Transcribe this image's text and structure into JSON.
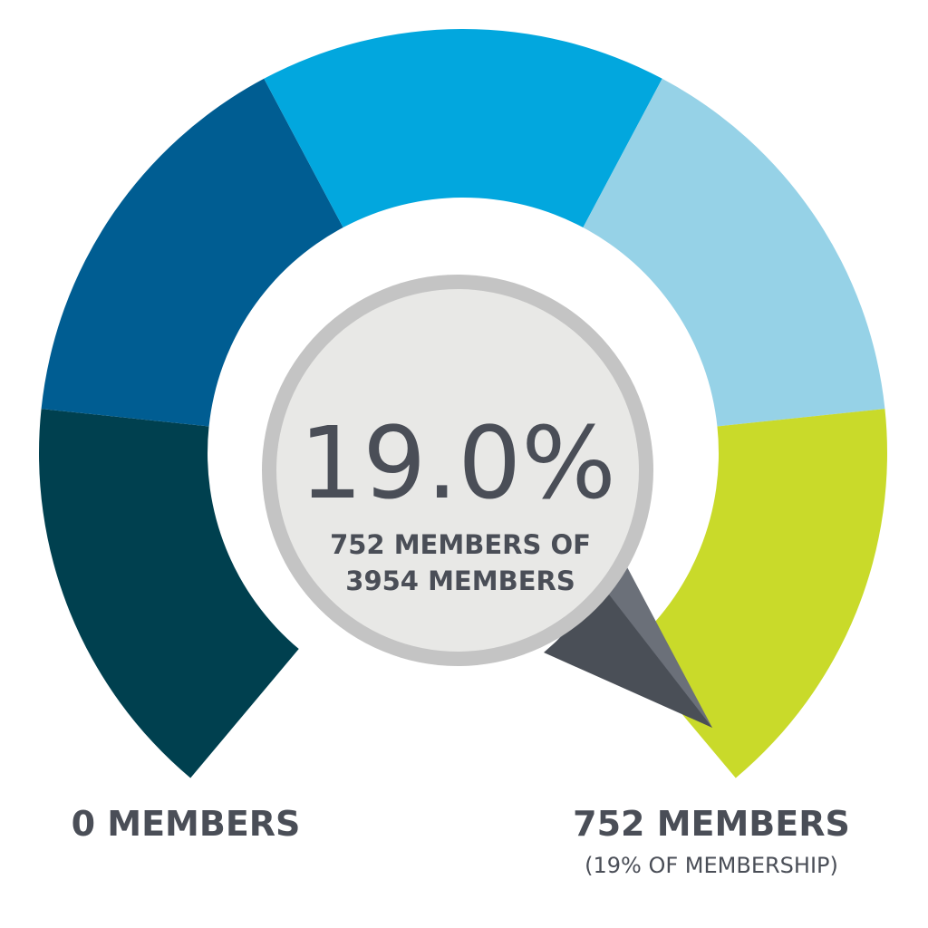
{
  "chart_data": {
    "type": "gauge",
    "value": 752,
    "total": 3954,
    "percent": 19.0,
    "center_value_label": "19.0%",
    "center_sub_line1": "752 MEMBERS OF",
    "center_sub_line2": "3954 MEMBERS",
    "min_label": "0 MEMBERS",
    "value_label": "752 MEMBERS",
    "value_sublabel": "(19% OF MEMBERSHIP)",
    "scale_max": 752,
    "segment_colors": [
      "#00404f",
      "#005d92",
      "#02a7de",
      "#96d2e7",
      "#c9da2a"
    ],
    "needle_colors": [
      "#4a4f57",
      "#6b7079"
    ],
    "dial_color": "#e8e8e6",
    "dial_rim_color": "#c4c4c4",
    "text_color": "#4a4e57"
  }
}
